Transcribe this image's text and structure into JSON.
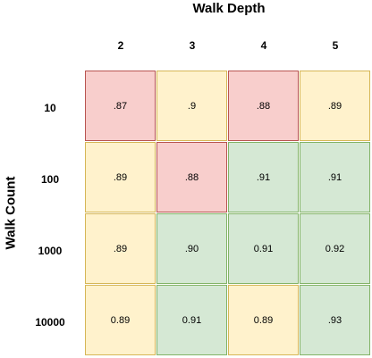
{
  "chart_data": {
    "type": "heatmap",
    "xlabel": "Walk Depth",
    "ylabel": "Walk Count",
    "x_categories": [
      "2",
      "3",
      "4",
      "5"
    ],
    "y_categories": [
      "10",
      "100",
      "1000",
      "10000"
    ],
    "cells": [
      [
        ".87",
        ".9",
        ".88",
        ".89"
      ],
      [
        ".89",
        ".88",
        ".91",
        ".91"
      ],
      [
        ".89",
        ".90",
        "0.91",
        "0.92"
      ],
      [
        "0.89",
        "0.91",
        "0.89",
        ".93"
      ]
    ],
    "values": [
      [
        0.87,
        0.9,
        0.88,
        0.89
      ],
      [
        0.89,
        0.88,
        0.91,
        0.91
      ],
      [
        0.89,
        0.9,
        0.91,
        0.92
      ],
      [
        0.89,
        0.91,
        0.89,
        0.93
      ]
    ],
    "cell_colors": [
      [
        "red",
        "yellow",
        "red",
        "yellow"
      ],
      [
        "yellow",
        "red",
        "green",
        "green"
      ],
      [
        "yellow",
        "green",
        "green",
        "green"
      ],
      [
        "yellow",
        "green",
        "yellow",
        "green"
      ]
    ],
    "palette": {
      "red": {
        "fill": "#f8cecc",
        "border": "#b85450"
      },
      "yellow": {
        "fill": "#fff2cc",
        "border": "#d6b656"
      },
      "green": {
        "fill": "#d5e8d4",
        "border": "#82b366"
      }
    }
  }
}
